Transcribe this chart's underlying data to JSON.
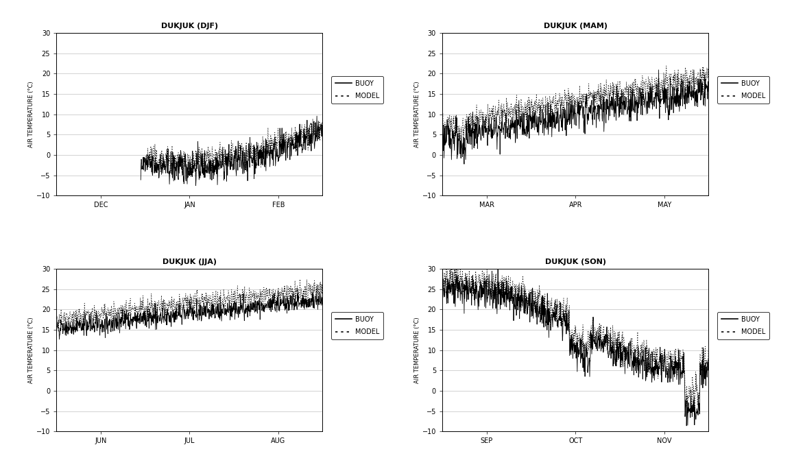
{
  "titles": [
    "DUKJUK (DJF)",
    "DUKJUK (MAM)",
    "DUKJUK (JJA)",
    "DUKJUK (SON)"
  ],
  "xlabels": [
    [
      "DEC",
      "JAN",
      "FEB"
    ],
    [
      "MAR",
      "APR",
      "MAY"
    ],
    [
      "JUN",
      "JUL",
      "AUG"
    ],
    [
      "SEP",
      "OCT",
      "NOV"
    ]
  ],
  "ylabel": "AIR TEMPERATURE (°C)",
  "ylim": [
    -10,
    30
  ],
  "yticks": [
    -10,
    -5,
    0,
    5,
    10,
    15,
    20,
    25,
    30
  ],
  "legend_labels": [
    "BUOY",
    "MODEL"
  ],
  "background_color": "#ffffff",
  "title_fontsize": 8,
  "label_fontsize": 6,
  "tick_fontsize": 7
}
